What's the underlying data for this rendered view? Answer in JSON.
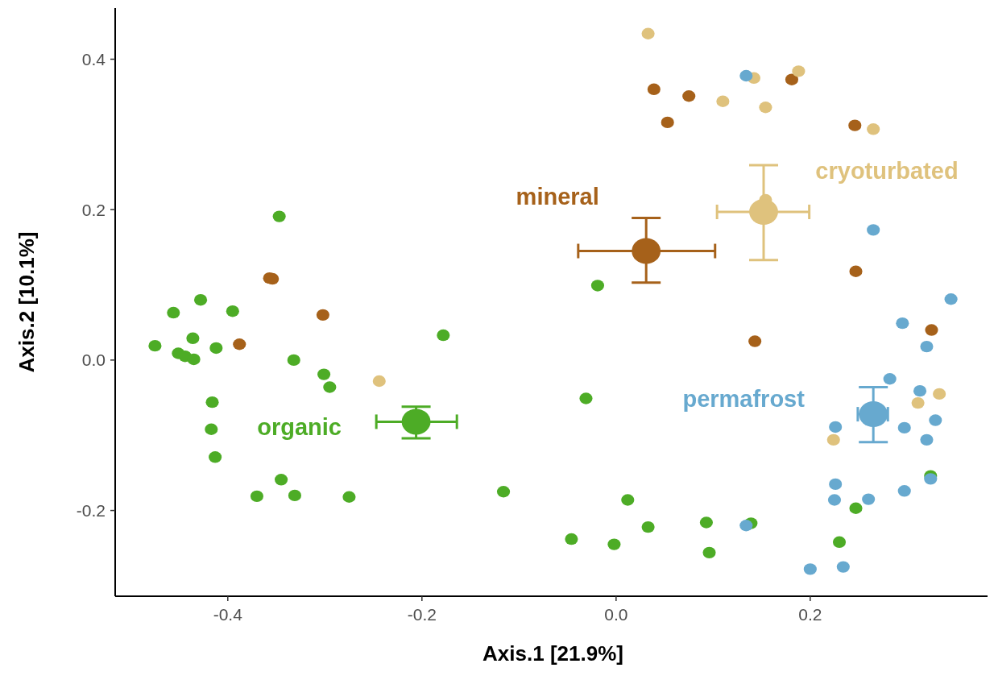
{
  "chart_data": {
    "type": "scatter",
    "xlabel": "Axis.1 [21.9%]",
    "ylabel": "Axis.2 [10.1%]",
    "xlim": [
      -0.516,
      0.386
    ],
    "ylim": [
      -0.314,
      0.468
    ],
    "xticks": [
      -0.4,
      -0.2,
      {
        "value": 0,
        "label": "0.0"
      },
      0.2
    ],
    "yticks": [
      -0.2,
      {
        "value": 0,
        "label": "0.0"
      },
      0.2,
      0.4
    ],
    "grid": false,
    "marker": "circle",
    "series": [
      {
        "color": "#4dac26",
        "x": [
          -0.347,
          -0.475,
          -0.456,
          -0.428,
          -0.395,
          -0.436,
          -0.451,
          -0.444,
          -0.435,
          -0.412,
          -0.332,
          -0.301,
          -0.295,
          -0.416,
          -0.417,
          -0.413,
          -0.345,
          -0.37,
          -0.331,
          -0.275,
          -0.178,
          -0.019,
          -0.031,
          -0.116,
          -0.046,
          -0.002,
          0.012,
          0.033,
          0.093,
          0.096,
          0.139,
          0.247,
          0.23,
          0.324
        ],
        "values": [
          0.191,
          0.019,
          0.063,
          0.08,
          0.065,
          0.029,
          0.009,
          0.005,
          0.001,
          0.016,
          0,
          -0.019,
          -0.036,
          -0.056,
          -0.092,
          -0.129,
          -0.159,
          -0.181,
          -0.18,
          -0.182,
          0.033,
          0.099,
          -0.051,
          -0.175,
          -0.238,
          -0.245,
          -0.186,
          -0.222,
          -0.216,
          -0.256,
          -0.217,
          -0.197,
          -0.242,
          -0.154
        ]
      },
      {
        "color": "#a6611a",
        "x": [
          -0.357,
          -0.354,
          -0.302,
          -0.388,
          0.039,
          0.075,
          0.053,
          0.181,
          0.246,
          0.247,
          0.143,
          0.325
        ],
        "values": [
          0.109,
          0.108,
          0.06,
          0.021,
          0.36,
          0.351,
          0.316,
          0.373,
          0.312,
          0.118,
          0.025,
          0.04
        ]
      },
      {
        "color": "#dfc27d",
        "x": [
          0.033,
          0.11,
          0.142,
          0.154,
          0.188,
          0.265,
          0.154,
          -0.244,
          0.311,
          0.333,
          0.224
        ],
        "values": [
          0.434,
          0.344,
          0.375,
          0.336,
          0.384,
          0.307,
          0.213,
          -0.028,
          -0.057,
          -0.045,
          -0.106
        ]
      },
      {
        "color": "#67a9cf",
        "x": [
          0.134,
          0.265,
          0.345,
          0.295,
          0.32,
          0.282,
          0.313,
          0.226,
          0.297,
          0.329,
          0.32,
          0.226,
          0.225,
          0.26,
          0.297,
          0.324,
          0.134,
          0.2,
          0.234
        ],
        "values": [
          0.378,
          0.173,
          0.081,
          0.049,
          0.018,
          -0.025,
          -0.041,
          -0.089,
          -0.09,
          -0.08,
          -0.106,
          -0.165,
          -0.186,
          -0.185,
          -0.174,
          -0.158,
          -0.22,
          -0.278,
          -0.275
        ]
      },
      {
        "name": "organic",
        "color": "#4dac26",
        "x": [
          -0.206
        ],
        "values": [
          -0.082
        ],
        "errors": [
          [
            -0.104,
            -0.062
          ]
        ],
        "xerrors": [
          [
            -0.247,
            -0.164
          ]
        ]
      },
      {
        "name": "mineral",
        "color": "#a6611a",
        "x": [
          0.031
        ],
        "values": [
          0.145
        ],
        "errors": [
          [
            0.103,
            0.189
          ]
        ],
        "xerrors": [
          [
            -0.039,
            0.102
          ]
        ]
      },
      {
        "name": "cryoturbated",
        "color": "#dfc27d",
        "x": [
          0.152
        ],
        "values": [
          0.197
        ],
        "errors": [
          [
            0.133,
            0.259
          ]
        ],
        "xerrors": [
          [
            0.104,
            0.199
          ]
        ]
      },
      {
        "name": "permafrost",
        "color": "#67a9cf",
        "x": [
          0.265
        ],
        "values": [
          -0.072
        ],
        "errors": [
          [
            -0.109,
            -0.036
          ]
        ],
        "xerrors": [
          [
            0.249,
            0.28
          ]
        ]
      }
    ]
  }
}
